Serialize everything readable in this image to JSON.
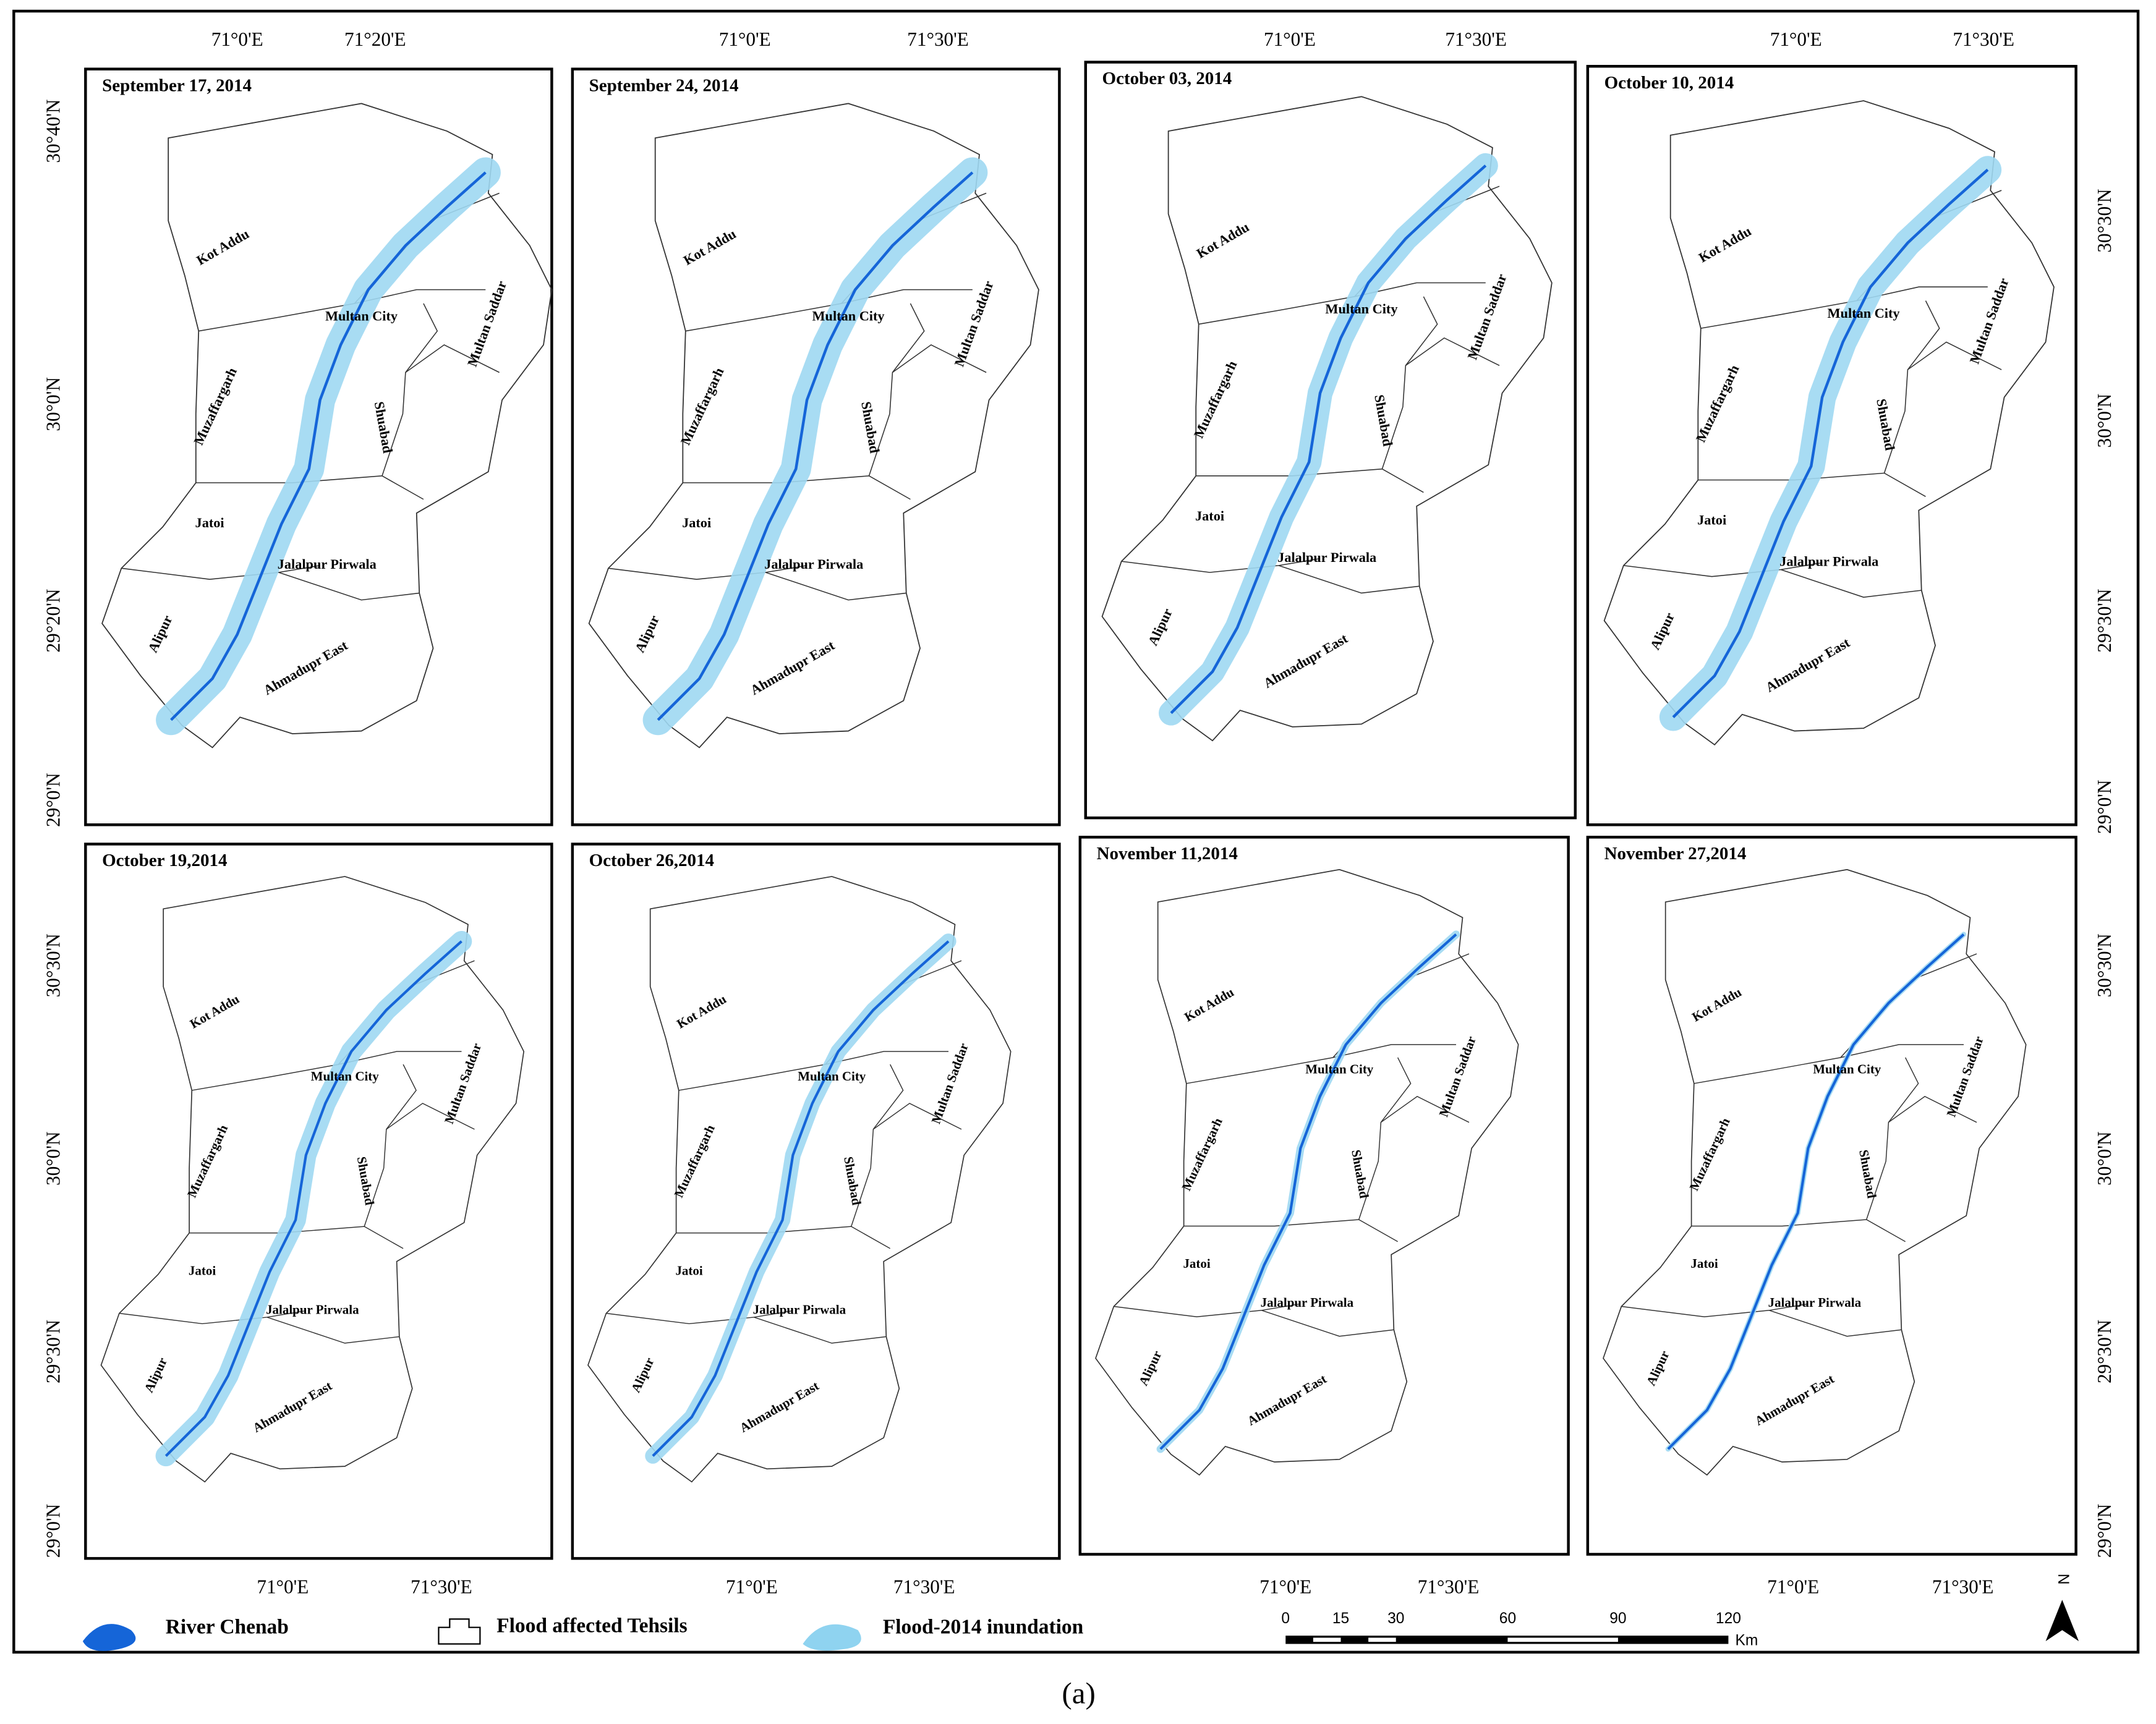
{
  "panels": [
    {
      "title": "September 17, 2014"
    },
    {
      "title": "September 24, 2014"
    },
    {
      "title": "October 03, 2014"
    },
    {
      "title": "October 10, 2014"
    },
    {
      "title": "October 19,2014"
    },
    {
      "title": "October 26,2014"
    },
    {
      "title": "November 11,2014"
    },
    {
      "title": "November 27,2014"
    }
  ],
  "tehsils": [
    "Kot Addu",
    "Muzaffargarh",
    "Multan City",
    "Multan Saddar",
    "Shuabad",
    "Jatoi",
    "Jalalpur Pirwala",
    "Alipur",
    "Ahmadupr East"
  ],
  "grid_labels": {
    "top": [
      [
        "71°0'E",
        "71°20'E"
      ],
      [
        "71°0'E",
        "71°30'E"
      ],
      [
        "71°0'E",
        "71°30'E"
      ],
      [
        "71°0'E",
        "71°30'E"
      ]
    ],
    "bottom": [
      [
        "71°0'E",
        "71°30'E"
      ],
      [
        "71°0'E",
        "71°30'E"
      ],
      [
        "71°0'E",
        "71°30'E"
      ],
      [
        "71°0'E",
        "71°30'E"
      ]
    ],
    "left": [
      [
        "30°40'N",
        "30°0'N",
        "29°20'N",
        "29°0'N"
      ],
      [
        "30°30'N",
        "30°0'N",
        "29°30'N",
        "29°0'N"
      ]
    ],
    "right": [
      [
        "30°30'N",
        "30°0'N",
        "29°30'N",
        "29°0'N"
      ],
      [
        "30°30'N",
        "30°0'N",
        "29°30'N",
        "29°0'N"
      ]
    ]
  },
  "legend": [
    "River Chenab",
    "Flood affected Tehsils",
    "Flood-2014 inundation"
  ],
  "scale_bar": {
    "labels": [
      "0",
      "15",
      "30",
      "60",
      "90",
      "120"
    ],
    "unit": "Km"
  },
  "north": "N",
  "caption": "(a)"
}
